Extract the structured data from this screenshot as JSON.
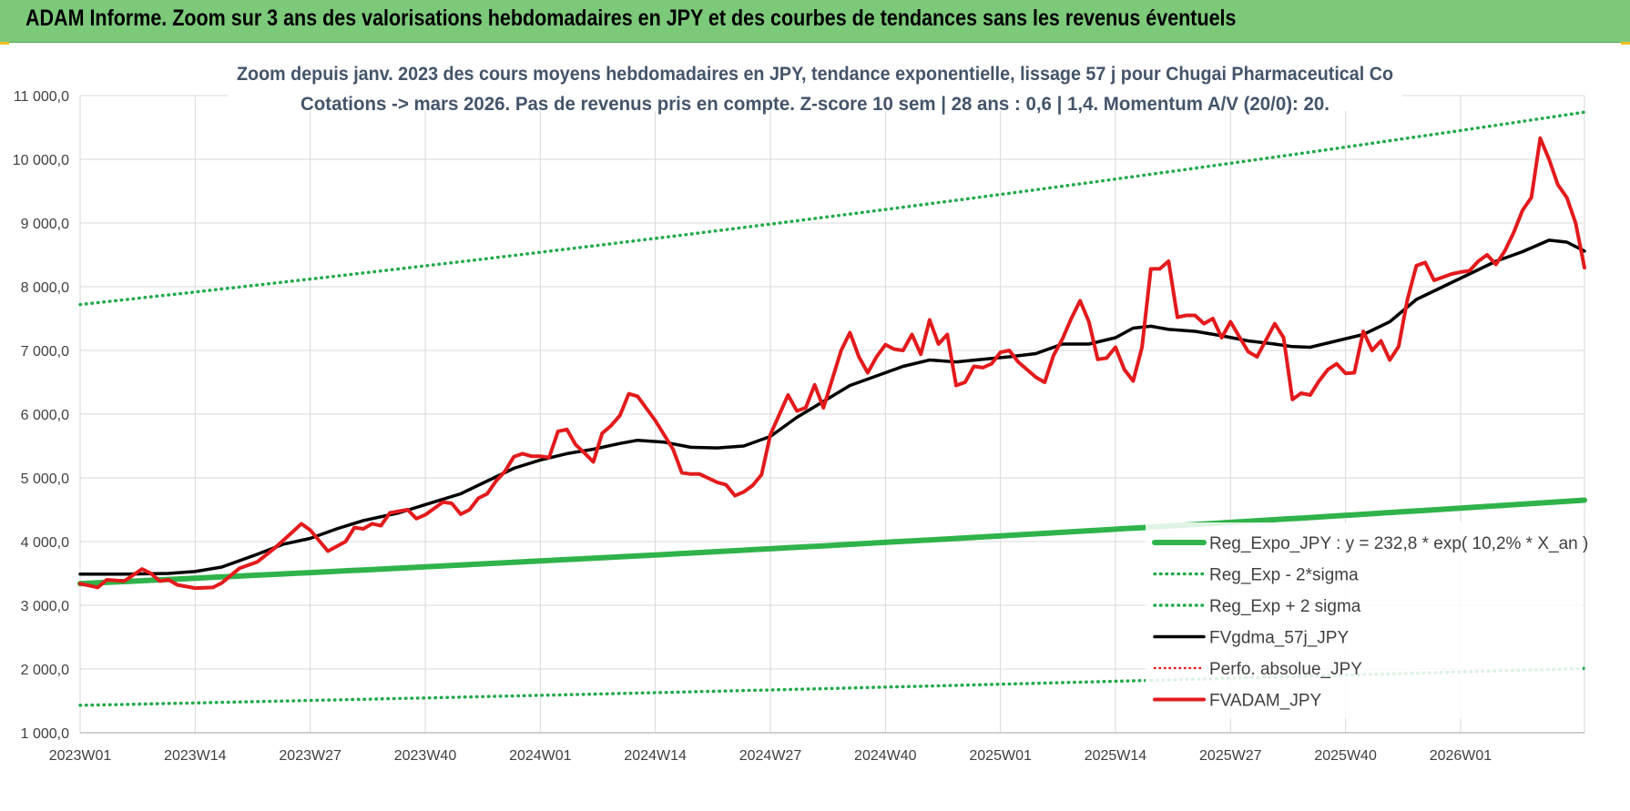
{
  "header": {
    "banner_title": "ADAM Informe. Zoom sur 3 ans des valorisations hebdomadaires en JPY et des courbes de tendances sans les revenus éventuels"
  },
  "colors": {
    "banner_bg": "#7cc97a",
    "regression": "#2fb34a",
    "sigma": "#1faa4a",
    "gdma": "#000000",
    "adam": "#e31a1c",
    "perfo": "#e31a1c",
    "title_text": "#44546a",
    "grid": "#d9d9d9"
  },
  "chart_data": {
    "type": "line",
    "title_line1": "Zoom depuis janv. 2023 des cours moyens hebdomadaires en JPY, tendance exponentielle, lissage 57 j pour Chugai Pharmaceutical Co",
    "title_line2": "Cotations -> mars 2026. Pas de revenus pris en compte. Z-score 10 sem | 28 ans : 0,6 | 1,4. Momentum A/V (20/0): 20.",
    "ylim": [
      1000,
      11000
    ],
    "yticks": [
      "1 000,0",
      "2 000,0",
      "3 000,0",
      "4 000,0",
      "5 000,0",
      "6 000,0",
      "7 000,0",
      "8 000,0",
      "9 000,0",
      "10 000,0",
      "11 000,0"
    ],
    "yticks_values": [
      1000,
      2000,
      3000,
      4000,
      5000,
      6000,
      7000,
      8000,
      9000,
      10000,
      11000
    ],
    "xticks": [
      "2023W01",
      "2023W14",
      "2023W27",
      "2023W40",
      "2024W01",
      "2024W14",
      "2024W27",
      "2024W40",
      "2025W01",
      "2025W14",
      "2025W27",
      "2025W40",
      "2026W01"
    ],
    "xticks_index": [
      0,
      13,
      26,
      39,
      52,
      65,
      78,
      91,
      104,
      117,
      130,
      143,
      156
    ],
    "n_weeks": 170,
    "series": [
      {
        "name": "Reg_Expo_JPY : y = 232,8 * exp( 10,2% *  X_an )",
        "kind": "regression",
        "start": 3340,
        "end": 4650
      },
      {
        "name": "Reg_Exp - 2*sigma",
        "kind": "lower",
        "start": 1430,
        "end": 2010
      },
      {
        "name": "Reg_Exp + 2 sigma",
        "kind": "upper",
        "start": 7720,
        "end": 10740
      },
      {
        "name": "FVgdma_57j_JPY",
        "kind": "gdma",
        "points": [
          [
            0,
            3490
          ],
          [
            5,
            3490
          ],
          [
            10,
            3500
          ],
          [
            13,
            3530
          ],
          [
            16,
            3600
          ],
          [
            20,
            3800
          ],
          [
            23,
            3960
          ],
          [
            26,
            4050
          ],
          [
            29,
            4200
          ],
          [
            32,
            4330
          ],
          [
            36,
            4450
          ],
          [
            39,
            4580
          ],
          [
            43,
            4750
          ],
          [
            46,
            4950
          ],
          [
            49,
            5150
          ],
          [
            52,
            5280
          ],
          [
            55,
            5380
          ],
          [
            58,
            5450
          ],
          [
            61,
            5540
          ],
          [
            63,
            5590
          ],
          [
            66,
            5560
          ],
          [
            69,
            5480
          ],
          [
            72,
            5470
          ],
          [
            75,
            5500
          ],
          [
            78,
            5650
          ],
          [
            81,
            5950
          ],
          [
            84,
            6200
          ],
          [
            87,
            6450
          ],
          [
            90,
            6600
          ],
          [
            93,
            6750
          ],
          [
            96,
            6850
          ],
          [
            99,
            6820
          ],
          [
            102,
            6860
          ],
          [
            105,
            6900
          ],
          [
            108,
            6950
          ],
          [
            111,
            7100
          ],
          [
            114,
            7100
          ],
          [
            117,
            7200
          ],
          [
            119,
            7350
          ],
          [
            121,
            7380
          ],
          [
            123,
            7330
          ],
          [
            126,
            7300
          ],
          [
            129,
            7230
          ],
          [
            132,
            7150
          ],
          [
            135,
            7100
          ],
          [
            137,
            7060
          ],
          [
            139,
            7050
          ],
          [
            142,
            7150
          ],
          [
            145,
            7250
          ],
          [
            148,
            7450
          ],
          [
            151,
            7800
          ],
          [
            154,
            8000
          ],
          [
            157,
            8200
          ],
          [
            160,
            8400
          ],
          [
            163,
            8550
          ],
          [
            166,
            8730
          ],
          [
            168,
            8700
          ],
          [
            170,
            8560
          ]
        ]
      },
      {
        "name": "Perfo. absolue_JPY",
        "kind": "perfo",
        "points": []
      },
      {
        "name": "FVADAM_JPY",
        "kind": "adam",
        "points": [
          [
            0,
            3340
          ],
          [
            2,
            3280
          ],
          [
            3,
            3400
          ],
          [
            5,
            3380
          ],
          [
            7,
            3570
          ],
          [
            8,
            3500
          ],
          [
            9,
            3380
          ],
          [
            10,
            3400
          ],
          [
            11,
            3320
          ],
          [
            13,
            3270
          ],
          [
            15,
            3280
          ],
          [
            16,
            3350
          ],
          [
            18,
            3580
          ],
          [
            20,
            3680
          ],
          [
            22,
            3900
          ],
          [
            24,
            4150
          ],
          [
            25,
            4280
          ],
          [
            26,
            4180
          ],
          [
            28,
            3850
          ],
          [
            30,
            4000
          ],
          [
            31,
            4220
          ],
          [
            32,
            4200
          ],
          [
            33,
            4280
          ],
          [
            34,
            4250
          ],
          [
            35,
            4450
          ],
          [
            37,
            4500
          ],
          [
            38,
            4360
          ],
          [
            39,
            4420
          ],
          [
            41,
            4620
          ],
          [
            42,
            4600
          ],
          [
            43,
            4430
          ],
          [
            44,
            4500
          ],
          [
            45,
            4680
          ],
          [
            46,
            4750
          ],
          [
            47,
            4950
          ],
          [
            48,
            5100
          ],
          [
            49,
            5330
          ],
          [
            50,
            5380
          ],
          [
            51,
            5340
          ],
          [
            52,
            5340
          ],
          [
            53,
            5320
          ],
          [
            54,
            5730
          ],
          [
            55,
            5760
          ],
          [
            56,
            5520
          ],
          [
            57,
            5390
          ],
          [
            58,
            5250
          ],
          [
            59,
            5700
          ],
          [
            60,
            5820
          ],
          [
            61,
            5980
          ],
          [
            62,
            6320
          ],
          [
            63,
            6280
          ],
          [
            65,
            5900
          ],
          [
            67,
            5450
          ],
          [
            68,
            5080
          ],
          [
            69,
            5060
          ],
          [
            70,
            5060
          ],
          [
            72,
            4930
          ],
          [
            73,
            4890
          ],
          [
            74,
            4720
          ],
          [
            75,
            4780
          ],
          [
            76,
            4880
          ],
          [
            77,
            5050
          ],
          [
            78,
            5680
          ],
          [
            80,
            6300
          ],
          [
            81,
            6050
          ],
          [
            82,
            6100
          ],
          [
            83,
            6460
          ],
          [
            84,
            6100
          ],
          [
            86,
            7000
          ],
          [
            87,
            7280
          ],
          [
            88,
            6900
          ],
          [
            89,
            6650
          ],
          [
            90,
            6900
          ],
          [
            91,
            7090
          ],
          [
            92,
            7020
          ],
          [
            93,
            7000
          ],
          [
            94,
            7250
          ],
          [
            95,
            6940
          ],
          [
            96,
            7480
          ],
          [
            97,
            7100
          ],
          [
            98,
            7250
          ],
          [
            99,
            6450
          ],
          [
            100,
            6500
          ],
          [
            101,
            6750
          ],
          [
            102,
            6730
          ],
          [
            103,
            6790
          ],
          [
            104,
            6970
          ],
          [
            105,
            7000
          ],
          [
            106,
            6820
          ],
          [
            107,
            6700
          ],
          [
            108,
            6580
          ],
          [
            109,
            6500
          ],
          [
            110,
            6920
          ],
          [
            111,
            7180
          ],
          [
            112,
            7500
          ],
          [
            113,
            7780
          ],
          [
            114,
            7450
          ],
          [
            115,
            6860
          ],
          [
            116,
            6880
          ],
          [
            117,
            7050
          ],
          [
            118,
            6700
          ],
          [
            119,
            6520
          ],
          [
            120,
            7050
          ],
          [
            121,
            8280
          ],
          [
            122,
            8280
          ],
          [
            123,
            8400
          ],
          [
            124,
            7520
          ],
          [
            125,
            7550
          ],
          [
            126,
            7550
          ],
          [
            127,
            7420
          ],
          [
            128,
            7500
          ],
          [
            129,
            7200
          ],
          [
            130,
            7450
          ],
          [
            132,
            6980
          ],
          [
            133,
            6900
          ],
          [
            135,
            7420
          ],
          [
            136,
            7200
          ],
          [
            137,
            6230
          ],
          [
            138,
            6330
          ],
          [
            139,
            6300
          ],
          [
            140,
            6520
          ],
          [
            141,
            6700
          ],
          [
            142,
            6790
          ],
          [
            143,
            6640
          ],
          [
            144,
            6650
          ],
          [
            145,
            7300
          ],
          [
            146,
            7000
          ],
          [
            147,
            7150
          ],
          [
            148,
            6850
          ],
          [
            149,
            7060
          ],
          [
            150,
            7800
          ],
          [
            151,
            8330
          ],
          [
            152,
            8380
          ],
          [
            153,
            8100
          ],
          [
            154,
            8150
          ],
          [
            155,
            8200
          ],
          [
            156,
            8230
          ],
          [
            157,
            8250
          ],
          [
            158,
            8400
          ],
          [
            159,
            8500
          ],
          [
            160,
            8350
          ],
          [
            161,
            8560
          ],
          [
            162,
            8850
          ],
          [
            163,
            9200
          ],
          [
            164,
            9400
          ],
          [
            165,
            10330
          ],
          [
            166,
            10000
          ],
          [
            167,
            9600
          ],
          [
            168,
            9400
          ],
          [
            169,
            9000
          ],
          [
            170,
            8300
          ]
        ]
      }
    ],
    "legend_position": "right"
  }
}
